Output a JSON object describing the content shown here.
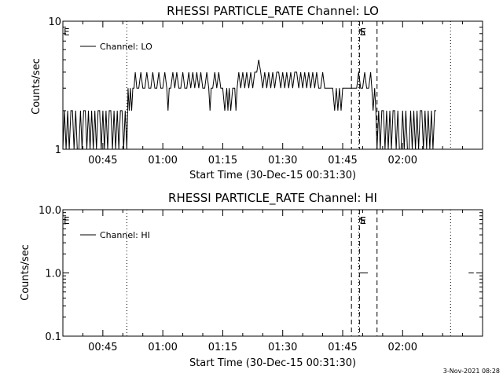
{
  "footer": {
    "timestamp": "3-Nov-2021 08:28"
  },
  "chart_data": [
    {
      "type": "line",
      "title": "RHESSI PARTICLE_RATE Channel: LO",
      "xlabel": "Start Time (30-Dec-15 00:31:30)",
      "ylabel": "Counts/sec",
      "yscale": "log",
      "ylim": [
        1,
        10
      ],
      "yticks": [
        {
          "v": 1,
          "label": "1"
        },
        {
          "v": 10,
          "label": "10"
        }
      ],
      "xlim_min": [
        4.0,
        109.0
      ],
      "xticks": [
        {
          "m": 14,
          "label": "00:45"
        },
        {
          "m": 29,
          "label": "01:00"
        },
        {
          "m": 44,
          "label": "01:15"
        },
        {
          "m": 59,
          "label": "01:30"
        },
        {
          "m": 74,
          "label": "01:45"
        },
        {
          "m": 89,
          "label": "02:00"
        }
      ],
      "legend": "Channel: LO",
      "legend_position": "top-left",
      "markers": [
        {
          "m": 4.0,
          "style": "dotted",
          "label": "E"
        },
        {
          "m": 20.0,
          "style": "dotted",
          "label": ""
        },
        {
          "m": 78.0,
          "style": "dotted",
          "label": "S"
        },
        {
          "m": 76.2,
          "style": "dashed",
          "label": ""
        },
        {
          "m": 78.2,
          "style": "dashed",
          "label": "E"
        },
        {
          "m": 82.6,
          "style": "dashed",
          "label": ""
        },
        {
          "m": 101.0,
          "style": "dotted",
          "label": ""
        }
      ],
      "series": [
        {
          "values": [
            [
              4.0,
              1
            ],
            [
              4.4,
              2
            ],
            [
              4.8,
              1
            ],
            [
              5.2,
              2
            ],
            [
              5.6,
              1
            ],
            [
              6.0,
              2
            ],
            [
              6.4,
              2
            ],
            [
              6.8,
              1
            ],
            [
              7.2,
              2
            ],
            [
              7.6,
              1
            ],
            [
              8.0,
              1
            ],
            [
              8.4,
              2
            ],
            [
              8.8,
              1
            ],
            [
              9.2,
              2
            ],
            [
              9.6,
              2
            ],
            [
              10.0,
              1
            ],
            [
              10.4,
              2
            ],
            [
              10.8,
              1
            ],
            [
              11.2,
              2
            ],
            [
              11.6,
              1
            ],
            [
              12.0,
              2
            ],
            [
              12.4,
              1
            ],
            [
              12.8,
              2
            ],
            [
              13.2,
              2
            ],
            [
              13.6,
              1
            ],
            [
              14.0,
              2
            ],
            [
              14.4,
              1
            ],
            [
              14.8,
              2
            ],
            [
              15.2,
              1
            ],
            [
              15.6,
              2
            ],
            [
              16.0,
              2
            ],
            [
              16.4,
              1
            ],
            [
              16.8,
              2
            ],
            [
              17.2,
              1
            ],
            [
              17.6,
              2
            ],
            [
              18.0,
              1
            ],
            [
              18.4,
              2
            ],
            [
              18.8,
              2
            ],
            [
              19.2,
              1
            ],
            [
              19.6,
              2
            ],
            [
              20.0,
              1
            ],
            [
              20.3,
              3
            ],
            [
              20.6,
              2
            ],
            [
              20.9,
              3
            ],
            [
              21.2,
              2
            ],
            [
              21.5,
              3
            ],
            [
              21.8,
              3
            ],
            [
              22.1,
              4
            ],
            [
              22.5,
              3
            ],
            [
              23.0,
              3
            ],
            [
              23.5,
              4
            ],
            [
              24.0,
              3
            ],
            [
              24.5,
              3
            ],
            [
              25.0,
              4
            ],
            [
              25.5,
              3
            ],
            [
              26.0,
              3
            ],
            [
              26.5,
              4
            ],
            [
              27.0,
              3
            ],
            [
              27.5,
              3
            ],
            [
              28.0,
              4
            ],
            [
              28.5,
              3
            ],
            [
              29.0,
              3
            ],
            [
              29.5,
              4
            ],
            [
              30.0,
              3
            ],
            [
              30.3,
              2
            ],
            [
              30.6,
              3
            ],
            [
              31.0,
              3
            ],
            [
              31.5,
              4
            ],
            [
              32.0,
              3
            ],
            [
              32.5,
              4
            ],
            [
              33.0,
              3
            ],
            [
              33.5,
              3
            ],
            [
              34.0,
              4
            ],
            [
              34.5,
              3
            ],
            [
              35.0,
              3
            ],
            [
              35.5,
              4
            ],
            [
              36.0,
              3
            ],
            [
              36.5,
              4
            ],
            [
              37.0,
              3
            ],
            [
              37.5,
              4
            ],
            [
              38.0,
              3
            ],
            [
              38.5,
              4
            ],
            [
              39.0,
              3
            ],
            [
              39.5,
              3
            ],
            [
              40.0,
              4
            ],
            [
              40.5,
              3
            ],
            [
              40.8,
              2
            ],
            [
              41.1,
              3
            ],
            [
              41.5,
              3
            ],
            [
              42.0,
              4
            ],
            [
              42.5,
              3
            ],
            [
              43.0,
              4
            ],
            [
              43.5,
              3
            ],
            [
              44.0,
              3
            ],
            [
              44.5,
              2
            ],
            [
              45.0,
              3
            ],
            [
              45.3,
              2
            ],
            [
              45.6,
              3
            ],
            [
              46.0,
              2
            ],
            [
              46.5,
              3
            ],
            [
              47.0,
              3
            ],
            [
              47.3,
              2
            ],
            [
              47.6,
              3
            ],
            [
              48.0,
              4
            ],
            [
              48.5,
              3
            ],
            [
              49.0,
              4
            ],
            [
              49.5,
              3
            ],
            [
              50.0,
              4
            ],
            [
              50.5,
              3
            ],
            [
              51.0,
              4
            ],
            [
              51.5,
              3
            ],
            [
              52.0,
              4
            ],
            [
              52.5,
              4
            ],
            [
              53.0,
              5
            ],
            [
              53.5,
              4
            ],
            [
              54.0,
              3
            ],
            [
              54.5,
              4
            ],
            [
              55.0,
              3
            ],
            [
              55.5,
              4
            ],
            [
              56.0,
              3
            ],
            [
              56.5,
              4
            ],
            [
              57.0,
              3
            ],
            [
              57.5,
              4
            ],
            [
              58.0,
              4
            ],
            [
              58.5,
              3
            ],
            [
              59.0,
              4
            ],
            [
              59.5,
              3
            ],
            [
              60.0,
              4
            ],
            [
              60.5,
              3
            ],
            [
              61.0,
              4
            ],
            [
              61.5,
              3
            ],
            [
              62.0,
              4
            ],
            [
              62.5,
              4
            ],
            [
              63.0,
              3
            ],
            [
              63.5,
              4
            ],
            [
              64.0,
              3
            ],
            [
              64.5,
              4
            ],
            [
              65.0,
              3
            ],
            [
              65.5,
              4
            ],
            [
              66.0,
              3
            ],
            [
              66.5,
              4
            ],
            [
              67.0,
              3
            ],
            [
              67.5,
              4
            ],
            [
              68.0,
              3
            ],
            [
              68.5,
              3
            ],
            [
              69.0,
              4
            ],
            [
              69.5,
              3
            ],
            [
              70.0,
              3
            ],
            [
              70.5,
              3
            ],
            [
              71.0,
              3
            ],
            [
              71.5,
              3
            ],
            [
              72.0,
              2
            ],
            [
              72.4,
              3
            ],
            [
              72.8,
              2
            ],
            [
              73.2,
              3
            ],
            [
              73.6,
              2
            ],
            [
              74.0,
              3
            ],
            [
              74.5,
              3
            ],
            [
              75.0,
              3
            ],
            [
              75.5,
              3
            ],
            [
              76.0,
              3
            ],
            [
              76.5,
              3
            ],
            [
              77.0,
              3
            ],
            [
              77.5,
              3
            ],
            [
              78.0,
              4
            ],
            [
              78.5,
              3
            ],
            [
              79.0,
              3
            ],
            [
              79.5,
              4
            ],
            [
              80.0,
              3
            ],
            [
              80.5,
              3
            ],
            [
              81.0,
              4
            ],
            [
              81.3,
              3
            ],
            [
              81.6,
              2
            ],
            [
              82.0,
              3
            ],
            [
              82.3,
              2
            ],
            [
              82.6,
              1
            ],
            [
              83.0,
              2
            ],
            [
              83.4,
              1
            ],
            [
              83.8,
              2
            ],
            [
              84.2,
              2
            ],
            [
              84.6,
              1
            ],
            [
              85.0,
              2
            ],
            [
              85.4,
              1
            ],
            [
              85.8,
              2
            ],
            [
              86.2,
              1
            ],
            [
              86.6,
              2
            ],
            [
              87.0,
              2
            ],
            [
              87.4,
              1
            ],
            [
              87.8,
              2
            ],
            [
              88.2,
              1
            ],
            [
              88.6,
              1
            ],
            [
              89.0,
              2
            ],
            [
              89.4,
              1
            ],
            [
              89.8,
              2
            ],
            [
              90.2,
              1
            ],
            [
              90.6,
              1
            ],
            [
              91.0,
              2
            ],
            [
              91.4,
              1
            ],
            [
              91.8,
              2
            ],
            [
              92.2,
              1
            ],
            [
              92.6,
              2
            ],
            [
              93.0,
              1
            ],
            [
              93.4,
              2
            ],
            [
              93.8,
              2
            ],
            [
              94.2,
              1
            ],
            [
              94.6,
              2
            ],
            [
              95.0,
              1
            ],
            [
              95.4,
              2
            ],
            [
              95.8,
              1
            ],
            [
              96.2,
              2
            ],
            [
              96.6,
              1
            ],
            [
              97.0,
              2
            ],
            [
              97.4,
              2
            ]
          ]
        }
      ]
    },
    {
      "type": "line",
      "title": "RHESSI PARTICLE_RATE Channel: HI",
      "xlabel": "Start Time (30-Dec-15 00:31:30)",
      "ylabel": "Counts/sec",
      "yscale": "log",
      "ylim": [
        0.1,
        10
      ],
      "yticks": [
        {
          "v": 0.1,
          "label": "0.1"
        },
        {
          "v": 1,
          "label": "1.0"
        },
        {
          "v": 10,
          "label": "10.0"
        }
      ],
      "xlim_min": [
        4.0,
        109.0
      ],
      "xticks": [
        {
          "m": 14,
          "label": "00:45"
        },
        {
          "m": 29,
          "label": "01:00"
        },
        {
          "m": 44,
          "label": "01:15"
        },
        {
          "m": 59,
          "label": "01:30"
        },
        {
          "m": 74,
          "label": "01:45"
        },
        {
          "m": 89,
          "label": "02:00"
        }
      ],
      "legend": "Channel: HI",
      "legend_position": "top-left",
      "markers": [
        {
          "m": 4.0,
          "style": "dotted",
          "label": "E"
        },
        {
          "m": 20.0,
          "style": "dotted",
          "label": ""
        },
        {
          "m": 78.0,
          "style": "dotted",
          "label": "S"
        },
        {
          "m": 76.2,
          "style": "dashed",
          "label": ""
        },
        {
          "m": 78.2,
          "style": "dashed",
          "label": "E"
        },
        {
          "m": 82.6,
          "style": "dashed",
          "label": ""
        },
        {
          "m": 101.0,
          "style": "dotted",
          "label": ""
        }
      ],
      "series": [
        {
          "values": [
            [
              78.3,
              1
            ],
            [
              80.3,
              1
            ]
          ],
          "segments": [
            [
              [
                78.3,
                1
              ],
              [
                80.3,
                1
              ]
            ],
            [
              [
                105.5,
                1
              ],
              [
                106.8,
                1
              ]
            ]
          ]
        }
      ]
    }
  ]
}
